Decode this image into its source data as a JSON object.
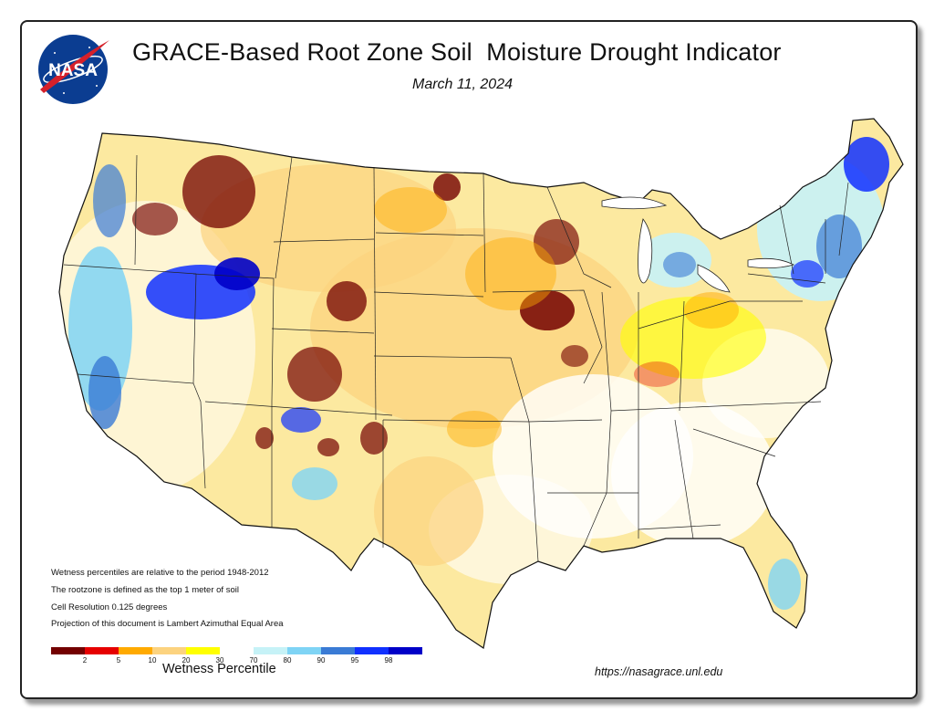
{
  "title": "GRACE-Based Root Zone Soil  Moisture Drought Indicator",
  "date": "March 11, 2024",
  "logo_text": "NASA",
  "notes": [
    "Wetness percentiles are relative to the period 1948-2012",
    "The rootzone is defined as the top 1 meter of soil",
    "Cell Resolution 0.125 degrees",
    "Projection of this document is Lambert Azimuthal Equal Area"
  ],
  "legend": {
    "title": "Wetness Percentile",
    "colors": [
      "#730000",
      "#e60000",
      "#ffaa00",
      "#fcd37f",
      "#ffff00",
      "#ffffff",
      "#c6f2f7",
      "#7fd4f5",
      "#3a7bd5",
      "#1030ff",
      "#0000c8"
    ],
    "tick_labels": [
      "2",
      "5",
      "10",
      "20",
      "30",
      "70",
      "80",
      "90",
      "95",
      "98"
    ]
  },
  "url": "https://nasagrace.unl.edu"
}
